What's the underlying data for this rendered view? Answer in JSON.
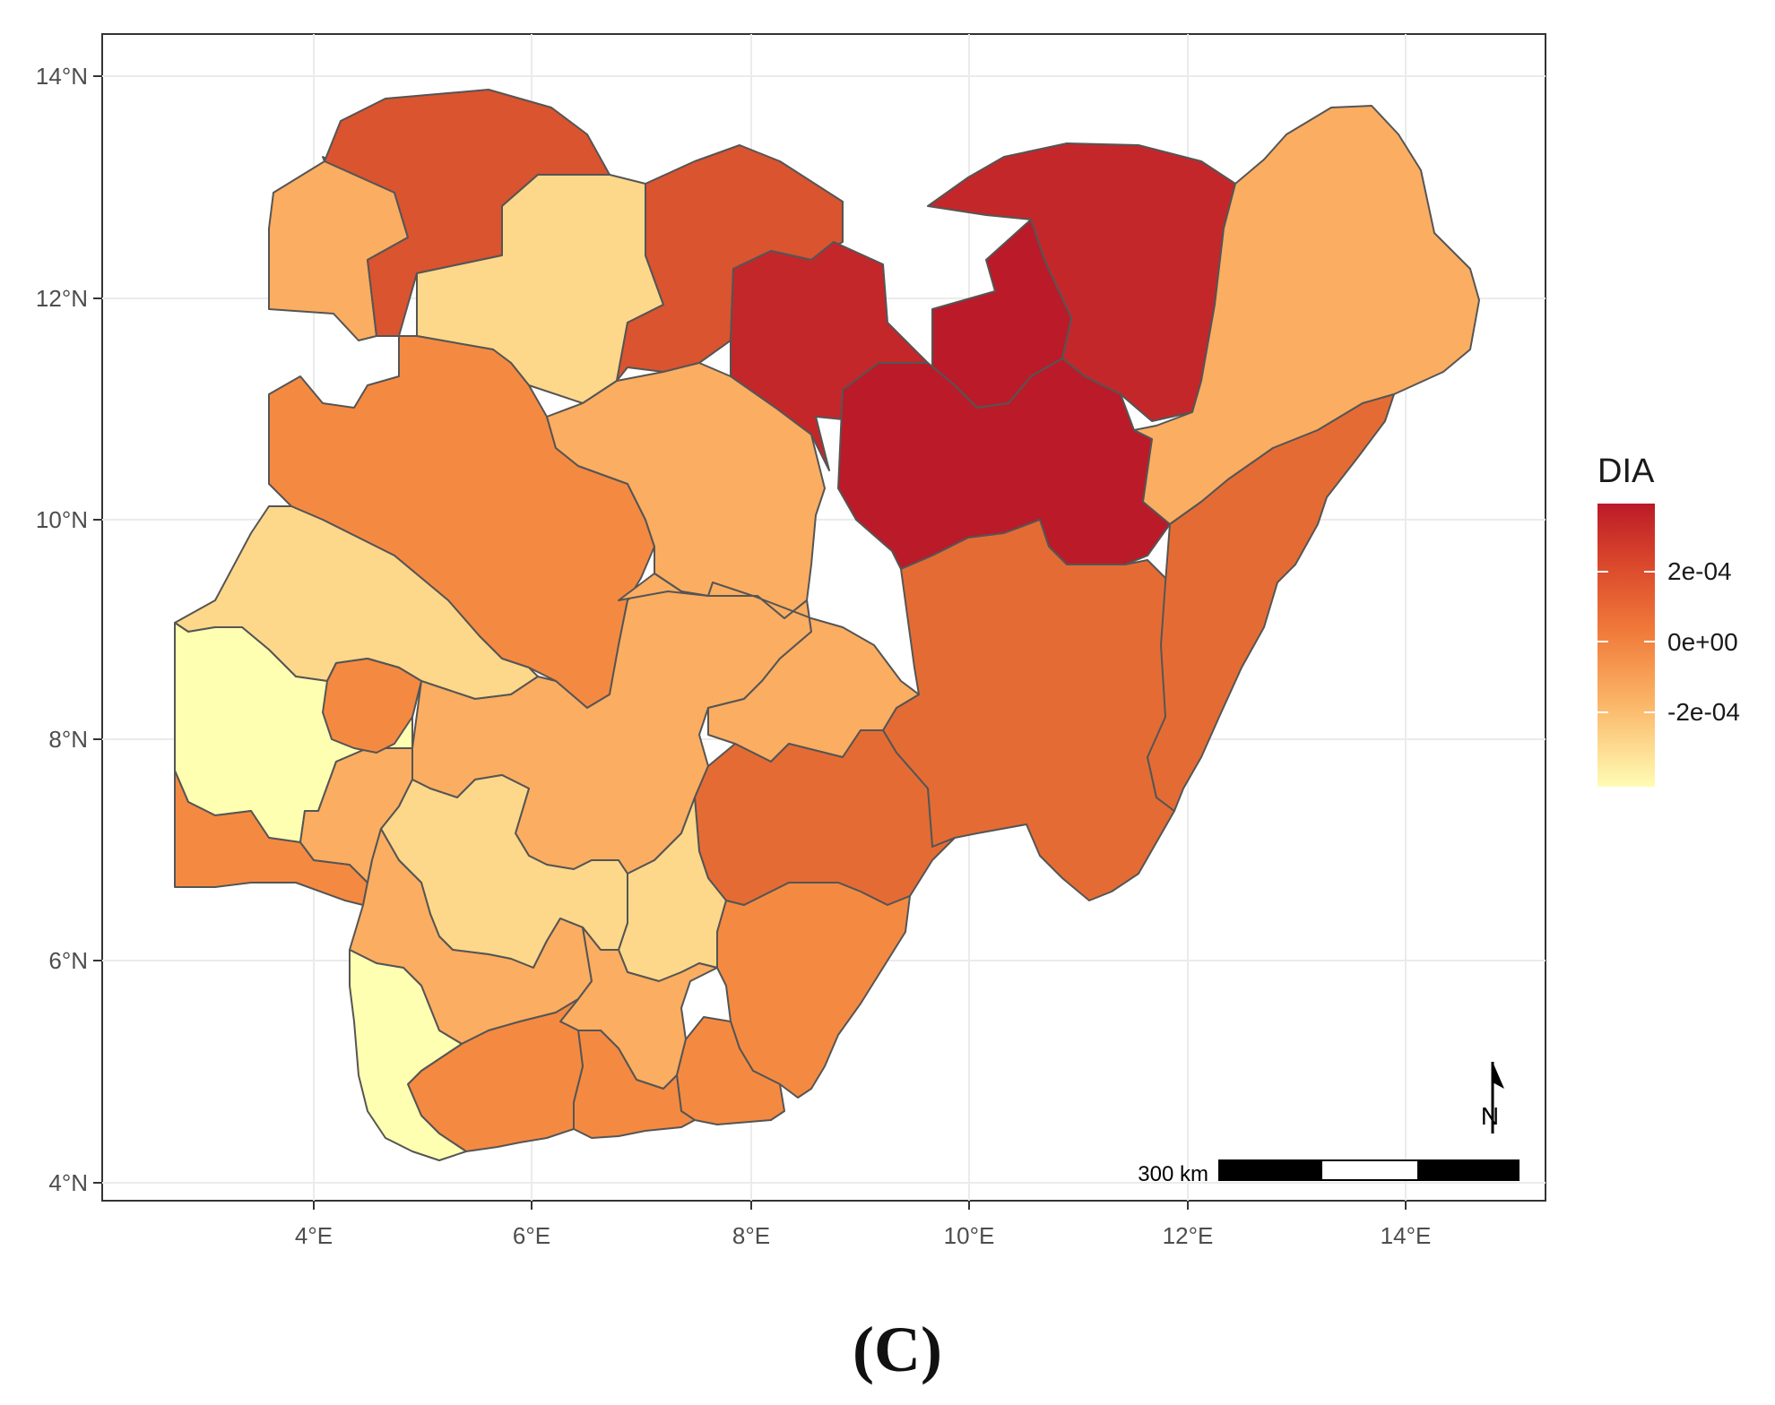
{
  "map": {
    "x_ticks": [
      "4°E",
      "6°E",
      "8°E",
      "10°E",
      "12°E",
      "14°E"
    ],
    "y_ticks": [
      "4°N",
      "6°N",
      "8°N",
      "10°N",
      "12°N",
      "14°N"
    ],
    "legend": {
      "title": "DIA",
      "labels": [
        "2e-04",
        "0e+00",
        "-2e-04"
      ]
    },
    "scale_bar": {
      "label": "300 km"
    },
    "north_arrow": {
      "label": "N"
    },
    "panel_label": "(C)"
  },
  "chart_data": {
    "type": "map",
    "title": "",
    "x_label": "",
    "y_label": "",
    "x_range": [
      "2.2°E",
      "15.3°E"
    ],
    "y_range": [
      "3.8°N",
      "14.4°N"
    ],
    "grid": true,
    "legend_title": "DIA",
    "legend_placement": "right",
    "legend_ticks": [
      0.0002,
      0,
      -0.0002
    ],
    "colorscale": [
      "#ffffbf",
      "#fee08b",
      "#fdae61",
      "#f46d43",
      "#d73027",
      "#b2182b"
    ],
    "colors": {
      "very_low": "#ffffb2",
      "low": "#fdd88a",
      "mid_low": "#fbad61",
      "mid": "#f48a41",
      "mid_high": "#e46c34",
      "high": "#d9542f",
      "very_high": "#c4272a",
      "max": "#bb1a28"
    },
    "regions": [
      {
        "name": "",
        "class": "mid_low"
      },
      {
        "name": "",
        "class": "high"
      },
      {
        "name": "",
        "class": "low"
      },
      {
        "name": "",
        "class": "high"
      },
      {
        "name": "",
        "class": "very_high"
      },
      {
        "name": "",
        "class": "very_high"
      },
      {
        "name": "",
        "class": "max"
      },
      {
        "name": "",
        "class": "max"
      },
      {
        "name": "",
        "class": "mid_low"
      },
      {
        "name": "",
        "class": "mid_high"
      },
      {
        "name": "",
        "class": "mid_high"
      },
      {
        "name": "",
        "class": "mid"
      },
      {
        "name": "",
        "class": "mid_low"
      },
      {
        "name": "",
        "class": "low"
      },
      {
        "name": "",
        "class": "very_low"
      },
      {
        "name": "",
        "class": "mid"
      }
    ]
  }
}
